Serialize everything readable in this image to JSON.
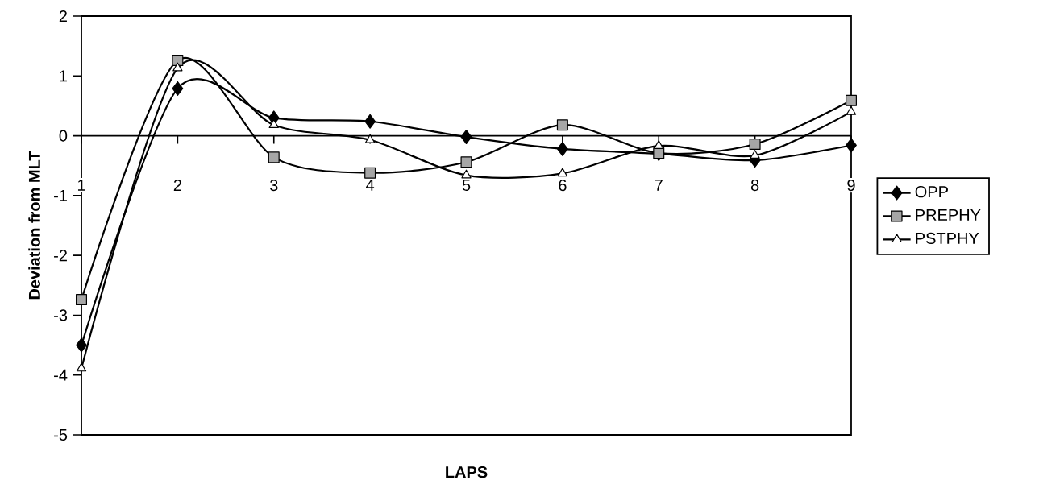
{
  "chart_data": {
    "type": "line",
    "xlabel": "LAPS",
    "ylabel": "Deviation from MLT",
    "categories": [
      "1",
      "2",
      "3",
      "4",
      "5",
      "6",
      "7",
      "8",
      "9"
    ],
    "series": [
      {
        "name": "OPP",
        "color": "#000000",
        "marker": "diamond",
        "values": [
          -3.5,
          0.79,
          0.3,
          0.24,
          -0.02,
          -0.22,
          -0.3,
          -0.41,
          -0.16
        ]
      },
      {
        "name": "PREPHY",
        "color": "#000000",
        "marker": "square",
        "values": [
          -2.74,
          1.26,
          -0.36,
          -0.62,
          -0.44,
          0.18,
          -0.29,
          -0.14,
          0.59
        ]
      },
      {
        "name": "PSTPHY",
        "color": "#000000",
        "marker": "triangle",
        "values": [
          -3.89,
          1.13,
          0.18,
          -0.07,
          -0.66,
          -0.63,
          -0.17,
          -0.33,
          0.4
        ]
      }
    ],
    "ylim": [
      -5,
      2
    ],
    "yticks": [
      -5,
      -4,
      -3,
      -2,
      -1,
      0,
      1,
      2
    ],
    "grid": false,
    "legend": "right",
    "ref_lines": [
      {
        "axis": "y",
        "value": 0
      }
    ]
  }
}
